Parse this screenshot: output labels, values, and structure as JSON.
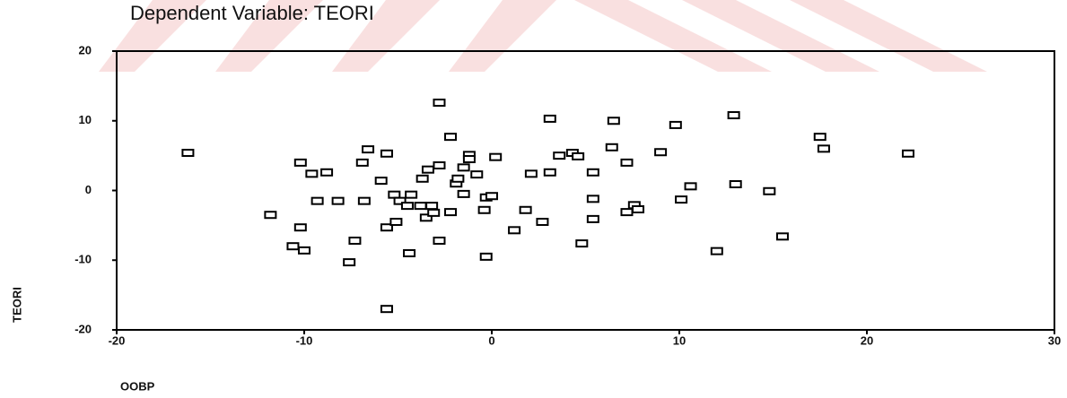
{
  "chart_data": {
    "type": "scatter",
    "title": "Dependent Variable: TEORI",
    "x_label": "OOBP",
    "y_label": "TEORI",
    "xlim": [
      -20,
      30
    ],
    "ylim": [
      -20,
      20
    ],
    "xticks": [
      -20,
      -10,
      0,
      10,
      20,
      30
    ],
    "yticks": [
      20,
      10,
      0,
      -10,
      -20
    ],
    "grid": false,
    "color": "#000000",
    "x": [
      -16.2,
      -11.8,
      -10.2,
      -10.2,
      -10.6,
      -10.0,
      -9.6,
      -8.8,
      -9.3,
      -8.2,
      -7.3,
      -7.6,
      -6.9,
      -6.6,
      -6.8,
      -5.9,
      -5.6,
      -5.6,
      -5.6,
      -5.2,
      -4.9,
      -5.1,
      -4.3,
      -4.5,
      -4.4,
      -3.8,
      -3.7,
      -3.4,
      -3.5,
      -3.2,
      -3.1,
      -2.8,
      -2.8,
      -2.8,
      -2.2,
      -2.2,
      -1.9,
      -1.8,
      -1.5,
      -1.5,
      -1.2,
      -1.2,
      -0.8,
      -0.4,
      -0.3,
      0.0,
      -0.3,
      0.2,
      1.2,
      1.8,
      2.1,
      2.7,
      3.1,
      3.1,
      3.6,
      4.3,
      4.6,
      4.8,
      5.4,
      5.4,
      5.4,
      6.4,
      6.5,
      7.2,
      7.2,
      7.6,
      7.8,
      9.0,
      9.8,
      10.1,
      10.6,
      12.0,
      12.9,
      13.0,
      14.8,
      15.5,
      17.5,
      17.7,
      22.2
    ],
    "values": [
      5.4,
      -3.5,
      4.0,
      -5.3,
      -8.0,
      -8.6,
      2.4,
      2.6,
      -1.5,
      -1.5,
      -7.2,
      -10.3,
      4.0,
      5.9,
      -1.5,
      1.4,
      5.3,
      -5.3,
      -17.0,
      -0.6,
      -1.5,
      -4.5,
      -0.6,
      -2.2,
      -9.0,
      -2.2,
      1.7,
      3.0,
      -3.9,
      -2.2,
      -3.2,
      3.6,
      12.6,
      -7.2,
      -3.1,
      7.7,
      1.0,
      1.7,
      -0.5,
      3.3,
      5.1,
      4.5,
      2.3,
      -2.8,
      -1.0,
      -0.8,
      -9.5,
      4.8,
      -5.7,
      -2.8,
      2.4,
      -4.5,
      2.6,
      10.3,
      5.0,
      5.4,
      4.9,
      -7.6,
      2.6,
      -1.2,
      -4.1,
      6.2,
      10.0,
      -3.1,
      4.0,
      -2.1,
      -2.7,
      5.5,
      9.4,
      -1.3,
      0.6,
      -8.7,
      10.8,
      0.9,
      -0.1,
      -6.6,
      7.7,
      6.0,
      5.3
    ]
  }
}
